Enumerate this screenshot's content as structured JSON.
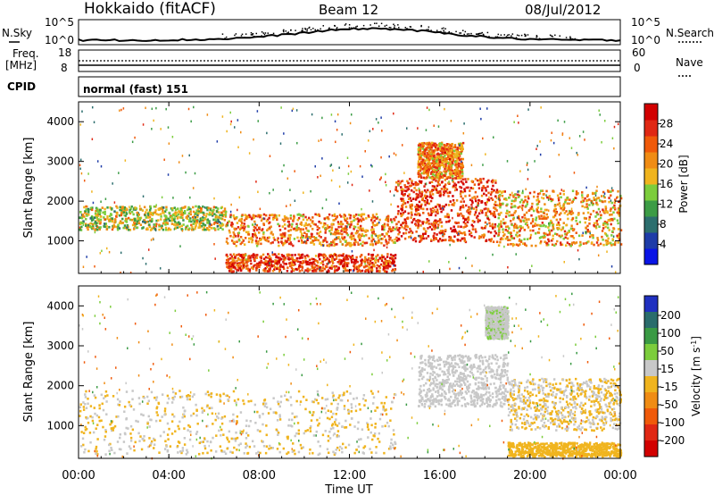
{
  "header": {
    "station": "Hokkaido (fitACF)",
    "beam": "Beam 12",
    "date": "08/Jul/2012"
  },
  "status_panels": {
    "nsky_label": "N.Sky",
    "nsearch_label": "N.Search",
    "nsky_ticks": [
      "10^5",
      "10^0"
    ],
    "nsearch_ticks": [
      "10^5",
      "10^0"
    ],
    "freq_label_1": "Freq.",
    "freq_label_2": "[MHz]",
    "freq_ticks": [
      "18",
      "8"
    ],
    "nave_label": "Nave",
    "nave_ticks": [
      "60",
      "0"
    ],
    "cpid_label": "CPID",
    "cpid_value": "normal (fast) 151"
  },
  "colorbars": {
    "power": {
      "label": "Power [dB]",
      "ticks": [
        "4",
        "8",
        "12",
        "16",
        "20",
        "24",
        "28"
      ],
      "colors": [
        "#0a14e6",
        "#1e3ca8",
        "#2c6e6e",
        "#3c9c46",
        "#7ccd3c",
        "#f0b41e",
        "#f08c14",
        "#f05a0a",
        "#e02814",
        "#d20000"
      ]
    },
    "velocity": {
      "label_main": "Velocity [m s",
      "label_sup": "-1",
      "label_end": "]",
      "ticks": [
        "200",
        "100",
        "50",
        "15",
        "-15",
        "-50",
        "-100",
        "-200"
      ],
      "colors": [
        "#2030c0",
        "#2a6c6c",
        "#3a9a44",
        "#7ccd3c",
        "#c8c8c8",
        "#f0b41e",
        "#f08c14",
        "#f05a0a",
        "#e02814",
        "#d20000"
      ]
    }
  },
  "chart_data": [
    {
      "type": "heatmap",
      "title": "Power [dB]",
      "xlabel": "Time UT",
      "ylabel": "Slant Range [km]",
      "xlim": [
        0,
        24
      ],
      "ylim": [
        180,
        4500
      ],
      "x_tick_labels": [
        "00:00",
        "04:00",
        "08:00",
        "12:00",
        "16:00",
        "20:00",
        "00:00"
      ],
      "y_tick_labels": [
        "1000",
        "2000",
        "3000",
        "4000"
      ],
      "colorbar_range_db": [
        0,
        32
      ],
      "features": [
        {
          "time_ut": [
            0,
            6.5
          ],
          "range_km": [
            1300,
            1900
          ],
          "level_db": 16
        },
        {
          "time_ut": [
            6.5,
            14
          ],
          "range_km": [
            900,
            1700
          ],
          "level_db": 22
        },
        {
          "time_ut": [
            6.5,
            14
          ],
          "range_km": [
            250,
            700
          ],
          "level_db": 26
        },
        {
          "time_ut": [
            14,
            18.5
          ],
          "range_km": [
            1000,
            2600
          ],
          "level_db": 26
        },
        {
          "time_ut": [
            18.5,
            24
          ],
          "range_km": [
            900,
            2300
          ],
          "level_db": 20
        },
        {
          "time_ut": [
            15,
            17
          ],
          "range_km": [
            2600,
            3500
          ],
          "level_db": 22
        }
      ]
    },
    {
      "type": "heatmap",
      "title": "Velocity [m s-1]",
      "xlabel": "Time UT",
      "ylabel": "Slant Range [km]",
      "xlim": [
        0,
        24
      ],
      "ylim": [
        180,
        4500
      ],
      "x_tick_labels": [
        "00:00",
        "04:00",
        "08:00",
        "12:00",
        "16:00",
        "20:00",
        "00:00"
      ],
      "y_tick_labels": [
        "1000",
        "2000",
        "3000",
        "4000"
      ],
      "colorbar_range_ms": [
        -250,
        250
      ],
      "features": [
        {
          "time_ut": [
            0,
            14
          ],
          "range_km": [
            300,
            1900
          ],
          "velocity_ms": 0
        },
        {
          "time_ut": [
            15,
            19
          ],
          "range_km": [
            1500,
            2800
          ],
          "velocity_ms": 20
        },
        {
          "time_ut": [
            19,
            24
          ],
          "range_km": [
            900,
            2200
          ],
          "velocity_ms": 0
        },
        {
          "time_ut": [
            18,
            19
          ],
          "range_km": [
            3200,
            4000
          ],
          "velocity_ms": 40
        },
        {
          "time_ut": [
            19,
            24
          ],
          "range_km": [
            250,
            600
          ],
          "velocity_ms": -30
        }
      ]
    }
  ]
}
